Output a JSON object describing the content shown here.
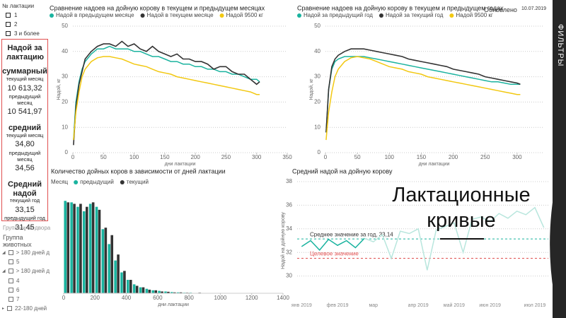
{
  "filters": {
    "title": "№ лактации",
    "options": [
      "1",
      "2",
      "3 и более"
    ]
  },
  "kpi": {
    "title": "Надой за лактацию",
    "blocks": [
      {
        "title": "суммарный",
        "rows": [
          {
            "label": "текущий месяц",
            "value": "10 613,32"
          },
          {
            "label": "предыдущий месяц",
            "value": "10 541,97"
          }
        ]
      },
      {
        "title": "средний",
        "rows": [
          {
            "label": "текущий месяц",
            "value": "34,80"
          },
          {
            "label": "предыдущий месяц",
            "value": "34,56"
          }
        ]
      },
      {
        "title": "Средний надой",
        "rows": [
          {
            "label": "текущий год",
            "value": "33,15"
          },
          {
            "label": "предыдущий год",
            "value": "31,45"
          }
        ]
      }
    ]
  },
  "group_filter": {
    "title": "Группа и № двора",
    "subtitle": "Группа животных",
    "items": [
      "> 180 дней д",
      "5",
      "> 180 дней д",
      "4",
      "6",
      "7",
      "22-180 дней"
    ]
  },
  "updated": {
    "label": "Обновлено",
    "date": "10.07.2019"
  },
  "side_tab": "ФИЛЬТРЫ",
  "overlay_title": "Лактационные кривые",
  "chart_data": [
    {
      "type": "line",
      "title": "Сравнение надоев на дойную корову в текущем и предыдущем месяцах",
      "x_label": "дни лактации",
      "y_label": "Надой, кг",
      "x": [
        1,
        5,
        10,
        15,
        20,
        30,
        40,
        50,
        60,
        70,
        80,
        90,
        100,
        110,
        120,
        130,
        140,
        150,
        160,
        170,
        180,
        190,
        200,
        210,
        220,
        230,
        240,
        250,
        260,
        270,
        280,
        290,
        300,
        305
      ],
      "series": [
        {
          "name": "Надой в предыдущем месяце",
          "color": "#1ab39f",
          "values": [
            5,
            20,
            28,
            33,
            36,
            39,
            41,
            41,
            42,
            41,
            41,
            41,
            40,
            40,
            39,
            38,
            38,
            37,
            36,
            36,
            35,
            35,
            34,
            34,
            33,
            33,
            32,
            32,
            31,
            31,
            30,
            29,
            29,
            28
          ]
        },
        {
          "name": "Надой в текущем месяце",
          "color": "#333333",
          "values": [
            3,
            18,
            27,
            32,
            37,
            40,
            42,
            43,
            43,
            42,
            44,
            42,
            43,
            41,
            40,
            42,
            40,
            39,
            38,
            39,
            37,
            37,
            36,
            36,
            35,
            33,
            34,
            34,
            32,
            31,
            31,
            29,
            27,
            28
          ]
        },
        {
          "name": "Надой 9500 кг",
          "color": "#f2c811",
          "values": [
            5,
            16,
            24,
            30,
            33,
            36,
            37.5,
            38,
            38,
            37.5,
            37,
            36,
            35,
            34.5,
            34,
            33,
            32,
            31.5,
            31,
            30,
            29.5,
            29,
            28.5,
            28,
            27.5,
            27,
            26.5,
            26,
            25.5,
            25,
            24.5,
            24,
            23,
            23
          ]
        }
      ],
      "xlim": [
        0,
        350
      ],
      "xticks": [
        0,
        50,
        100,
        150,
        200,
        250,
        300,
        350
      ],
      "ylim": [
        0,
        50
      ],
      "yticks": [
        0,
        10,
        20,
        30,
        40,
        50
      ],
      "grid": true
    },
    {
      "type": "line",
      "title": "Сравнение надоев на дойную корову в текущем и предыдущем годах",
      "x_label": "дни лактации",
      "y_label": "Надой, кг",
      "x": [
        1,
        5,
        10,
        15,
        20,
        30,
        40,
        50,
        60,
        70,
        80,
        90,
        100,
        110,
        120,
        130,
        140,
        150,
        160,
        170,
        180,
        190,
        200,
        210,
        220,
        230,
        240,
        250,
        260,
        270,
        280,
        290,
        300,
        305
      ],
      "series": [
        {
          "name": "Надой за предыдущий год",
          "color": "#1ab39f",
          "values": [
            8,
            25,
            33,
            36,
            37,
            38,
            38,
            38,
            38,
            37.5,
            37,
            36.5,
            36,
            35.5,
            35,
            34.5,
            34,
            33.5,
            33,
            32.5,
            32,
            31.5,
            31,
            30.5,
            30,
            29.5,
            29,
            28.5,
            28,
            28,
            27.5,
            27,
            27,
            27
          ]
        },
        {
          "name": "Надой за текущий год",
          "color": "#333333",
          "values": [
            8,
            25,
            34,
            37,
            38.5,
            40,
            41,
            41,
            41,
            40.5,
            40,
            39.5,
            39,
            38.5,
            38,
            37,
            36.5,
            36,
            35.5,
            35,
            34.5,
            34,
            33,
            32.5,
            32,
            31.5,
            31,
            30,
            29.5,
            29,
            28.5,
            28,
            27.5,
            27
          ]
        },
        {
          "name": "Надой 9500 кг",
          "color": "#f2c811",
          "values": [
            5,
            16,
            24,
            30,
            33,
            36,
            37.5,
            38,
            37.5,
            37,
            36,
            35,
            34,
            33.5,
            33,
            32,
            31.5,
            31,
            30,
            29.5,
            29,
            28.5,
            28,
            27.5,
            27,
            26.5,
            26,
            25.5,
            25,
            24.5,
            24,
            23.5,
            23,
            23
          ]
        }
      ],
      "xlim": [
        0,
        340
      ],
      "xticks": [
        0,
        50,
        100,
        150,
        200,
        250,
        300
      ],
      "ylim": [
        0,
        50
      ],
      "yticks": [
        0,
        10,
        20,
        30,
        40,
        50
      ],
      "grid": true
    },
    {
      "type": "bar",
      "title": "Количество дойных коров в зависимости от дней лактации",
      "legend_title": "Месяц",
      "x_label": "дни лактации",
      "x": [
        20,
        60,
        100,
        140,
        180,
        220,
        260,
        300,
        340,
        380,
        420,
        460,
        500,
        540,
        580,
        620,
        660,
        700,
        740,
        780,
        820,
        860,
        900,
        940,
        980,
        1020,
        1060,
        1100,
        1140,
        1180,
        1220,
        1260
      ],
      "series": [
        {
          "name": "предыдущий",
          "color": "#1ab39f",
          "values": [
            310,
            305,
            290,
            275,
            300,
            290,
            215,
            165,
            110,
            70,
            45,
            30,
            20,
            15,
            10,
            8,
            6,
            4,
            3,
            2,
            2,
            1,
            1,
            1,
            1,
            0,
            1,
            0,
            0,
            1,
            1,
            0
          ]
        },
        {
          "name": "текущий",
          "color": "#333333",
          "values": [
            305,
            300,
            300,
            290,
            305,
            280,
            220,
            195,
            130,
            75,
            45,
            25,
            20,
            12,
            10,
            6,
            5,
            3,
            3,
            2,
            1,
            2,
            1,
            0,
            1,
            1,
            0,
            1,
            0,
            0,
            1,
            0
          ]
        }
      ],
      "xlim": [
        0,
        1400
      ],
      "xticks": [
        0,
        200,
        400,
        600,
        800,
        1000,
        1200,
        1400
      ],
      "ylim": [
        0,
        320
      ]
    },
    {
      "type": "line",
      "title": "Средний надой на дойную корову",
      "y_label": "Надой на дойную корову",
      "categories": [
        "янв 2019",
        null,
        null,
        null,
        "фев 2019",
        null,
        null,
        null,
        "мар",
        null,
        null,
        null,
        null,
        "апр 2019",
        null,
        null,
        null,
        "май 2019",
        null,
        null,
        null,
        "июн 2019",
        null,
        null,
        null,
        null,
        "июл 2019",
        null
      ],
      "series": [
        {
          "color": "#1ab39f",
          "values": [
            32.5,
            33,
            32.2,
            33.1,
            32.6,
            33,
            32.4,
            33.2,
            null,
            null,
            null,
            null,
            null,
            null,
            null,
            null,
            null,
            null,
            null,
            null,
            null,
            null,
            null,
            null,
            null,
            null,
            null,
            null
          ]
        },
        {
          "color": "#b8e6dd",
          "values": [
            null,
            null,
            null,
            null,
            null,
            null,
            null,
            33.2,
            32.9,
            33.5,
            31.5,
            33.8,
            33.6,
            34,
            30.5,
            33.9,
            34.2,
            34.5,
            32,
            34.8,
            35,
            34.6,
            35.3,
            34.9,
            35.5,
            35.2,
            35.8,
            34.1
          ]
        }
      ],
      "reference_lines": [
        {
          "label": "Среднее значение за год, 33,14",
          "value": 33.14,
          "color": "#1ab39f"
        },
        {
          "label": "Целевое значение",
          "value": 31.5,
          "color": "#e05050"
        }
      ],
      "ylim": [
        28,
        38
      ],
      "yticks": [
        30,
        32,
        34,
        36,
        38
      ],
      "grid": true
    }
  ]
}
